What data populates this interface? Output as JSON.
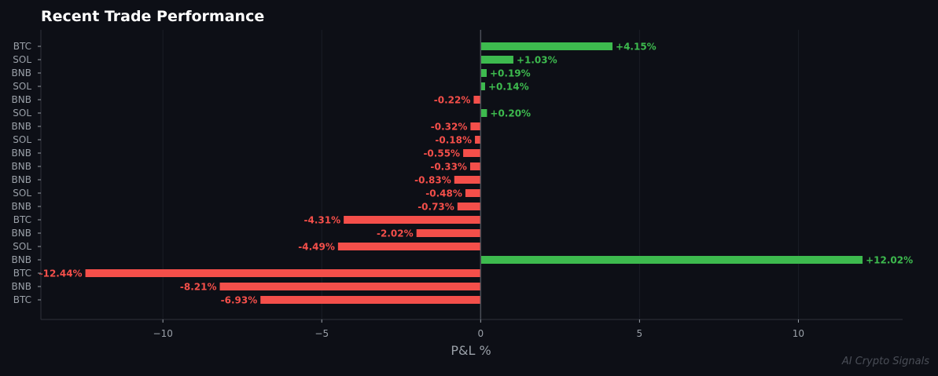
{
  "chart_data": {
    "type": "bar",
    "orientation": "horizontal",
    "title": "Recent Trade Performance",
    "xlabel": "P&L %",
    "ylabel": "",
    "xlim": [
      -13.84,
      13.28
    ],
    "xticks": [
      -10,
      -5,
      0,
      5,
      10
    ],
    "xtick_labels": [
      "−10",
      "−5",
      "0",
      "5",
      "10"
    ],
    "categories": [
      "BTC",
      "SOL",
      "BNB",
      "SOL",
      "BNB",
      "SOL",
      "BNB",
      "SOL",
      "BNB",
      "BNB",
      "BNB",
      "SOL",
      "BNB",
      "BTC",
      "BNB",
      "SOL",
      "BNB",
      "BTC",
      "BNB",
      "BTC"
    ],
    "values": [
      4.15,
      1.03,
      0.19,
      0.14,
      -0.22,
      0.2,
      -0.32,
      -0.18,
      -0.55,
      -0.33,
      -0.83,
      -0.48,
      -0.73,
      -4.31,
      -2.02,
      -4.49,
      12.02,
      -12.44,
      -8.21,
      -6.93
    ],
    "value_labels": [
      "+4.15%",
      "+1.03%",
      "+0.19%",
      "+0.14%",
      "-0.22%",
      "+0.20%",
      "-0.32%",
      "-0.18%",
      "-0.55%",
      "-0.33%",
      "-0.83%",
      "-0.48%",
      "-0.73%",
      "-4.31%",
      "-2.02%",
      "-4.49%",
      "+12.02%",
      "-12.44%",
      "-8.21%",
      "-6.93%"
    ],
    "grid": true,
    "legend": "none",
    "watermark": "AI Crypto Signals"
  },
  "colors": {
    "background": "#0d0f16",
    "positive": "#3dba4e",
    "negative": "#f44f4a",
    "text": "#ffffff",
    "axis_text": "#9aa0a8",
    "grid": "#1a1d25",
    "zero_line": "#4a4e57",
    "spine": "#2e323b",
    "watermark": "#4a4e57"
  }
}
